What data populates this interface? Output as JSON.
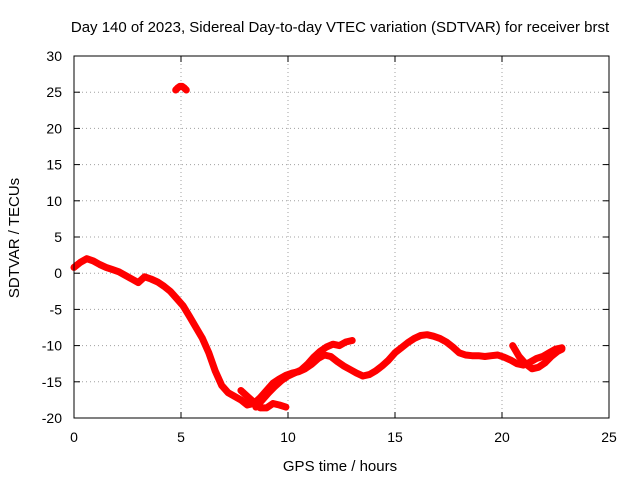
{
  "chart_data": {
    "type": "scatter",
    "title": "Day 140 of 2023, Sidereal Day-to-day VTEC variation (SDTVAR) for receiver brst",
    "xlabel": "GPS time / hours",
    "ylabel": "SDTVAR / TECUs",
    "xlim": [
      0,
      25
    ],
    "ylim": [
      -20,
      30
    ],
    "xticks": [
      "0",
      "5",
      "10",
      "15",
      "20",
      "25"
    ],
    "xtick_values": [
      0,
      5,
      10,
      15,
      20,
      25
    ],
    "yticks": [
      "-20",
      "-15",
      "-10",
      "-5",
      "0",
      "5",
      "10",
      "15",
      "20",
      "25",
      "30"
    ],
    "ytick_values": [
      -20,
      -15,
      -10,
      -5,
      0,
      5,
      10,
      15,
      20,
      25,
      30
    ],
    "grid": true,
    "series": [
      {
        "name": "main",
        "color": "#ff0000",
        "x": [
          0.0,
          0.3,
          0.6,
          0.9,
          1.2,
          1.5,
          1.8,
          2.1,
          2.4,
          2.7,
          3.0,
          3.3,
          3.6,
          3.9,
          4.2,
          4.5,
          4.8,
          5.1,
          5.4,
          5.7,
          6.0,
          6.3,
          6.6,
          6.9,
          7.2,
          7.5,
          7.8,
          8.1,
          8.4,
          8.7,
          9.0,
          9.3,
          9.6,
          9.9,
          10.2,
          10.5,
          10.8,
          11.1,
          11.4,
          11.7,
          12.0,
          12.3,
          12.6,
          12.9,
          13.2,
          13.5,
          13.8,
          14.1,
          14.4,
          14.7,
          15.0,
          15.3,
          15.6,
          15.9,
          16.2,
          16.5,
          16.8,
          17.1,
          17.4,
          17.7,
          18.0,
          18.3,
          18.6,
          18.9,
          19.2,
          19.5,
          19.8,
          20.1,
          20.4,
          20.7,
          21.0,
          21.3,
          21.6,
          21.9,
          22.2,
          22.5,
          22.8
        ],
        "y": [
          0.8,
          1.5,
          2.0,
          1.7,
          1.2,
          0.8,
          0.5,
          0.2,
          -0.3,
          -0.8,
          -1.3,
          -0.5,
          -0.8,
          -1.2,
          -1.8,
          -2.5,
          -3.5,
          -4.5,
          -6.0,
          -7.5,
          -9.0,
          -11.0,
          -13.5,
          -15.5,
          -16.5,
          -17.0,
          -17.5,
          -18.2,
          -18.0,
          -17.2,
          -16.2,
          -15.2,
          -14.6,
          -14.1,
          -13.8,
          -13.6,
          -13.2,
          -12.6,
          -11.8,
          -11.3,
          -11.5,
          -12.2,
          -12.8,
          -13.3,
          -13.8,
          -14.2,
          -14.0,
          -13.5,
          -12.8,
          -12.0,
          -11.0,
          -10.3,
          -9.6,
          -9.0,
          -8.6,
          -8.5,
          -8.7,
          -9.0,
          -9.5,
          -10.2,
          -11.0,
          -11.3,
          -11.4,
          -11.4,
          -11.5,
          -11.4,
          -11.3,
          -11.6,
          -12.0,
          -12.5,
          -12.7,
          -12.3,
          -11.8,
          -11.5,
          -11.0,
          -10.5,
          -10.3
        ]
      },
      {
        "name": "upper-branch",
        "color": "#ff0000",
        "x": [
          8.5,
          8.8,
          9.1,
          9.4,
          9.7,
          10.0,
          10.3,
          10.6,
          10.9,
          11.2,
          11.5,
          11.8,
          12.1,
          12.4,
          12.7,
          13.0
        ],
        "y": [
          -18.5,
          -17.5,
          -16.5,
          -15.6,
          -14.8,
          -14.2,
          -13.8,
          -13.4,
          -12.6,
          -11.6,
          -10.8,
          -10.2,
          -9.8,
          -10.0,
          -9.5,
          -9.3
        ]
      },
      {
        "name": "lower-branch",
        "color": "#ff0000",
        "x": [
          7.8,
          8.1,
          8.4,
          8.7,
          9.0,
          9.3,
          9.6,
          9.9
        ],
        "y": [
          -16.2,
          -17.0,
          -17.8,
          -18.6,
          -18.6,
          -18.0,
          -18.2,
          -18.5
        ]
      },
      {
        "name": "tail-branch",
        "color": "#ff0000",
        "x": [
          20.5,
          20.8,
          21.1,
          21.4,
          21.7,
          22.0,
          22.3,
          22.6,
          22.8
        ],
        "y": [
          -10.0,
          -11.5,
          -12.5,
          -13.2,
          -13.0,
          -12.4,
          -11.5,
          -10.8,
          -10.5
        ]
      },
      {
        "name": "peak-cluster",
        "color": "#ff0000",
        "x": [
          4.75,
          4.85,
          4.95,
          5.05,
          5.15,
          5.25
        ],
        "y": [
          25.3,
          25.6,
          25.8,
          25.8,
          25.6,
          25.3
        ]
      }
    ]
  }
}
